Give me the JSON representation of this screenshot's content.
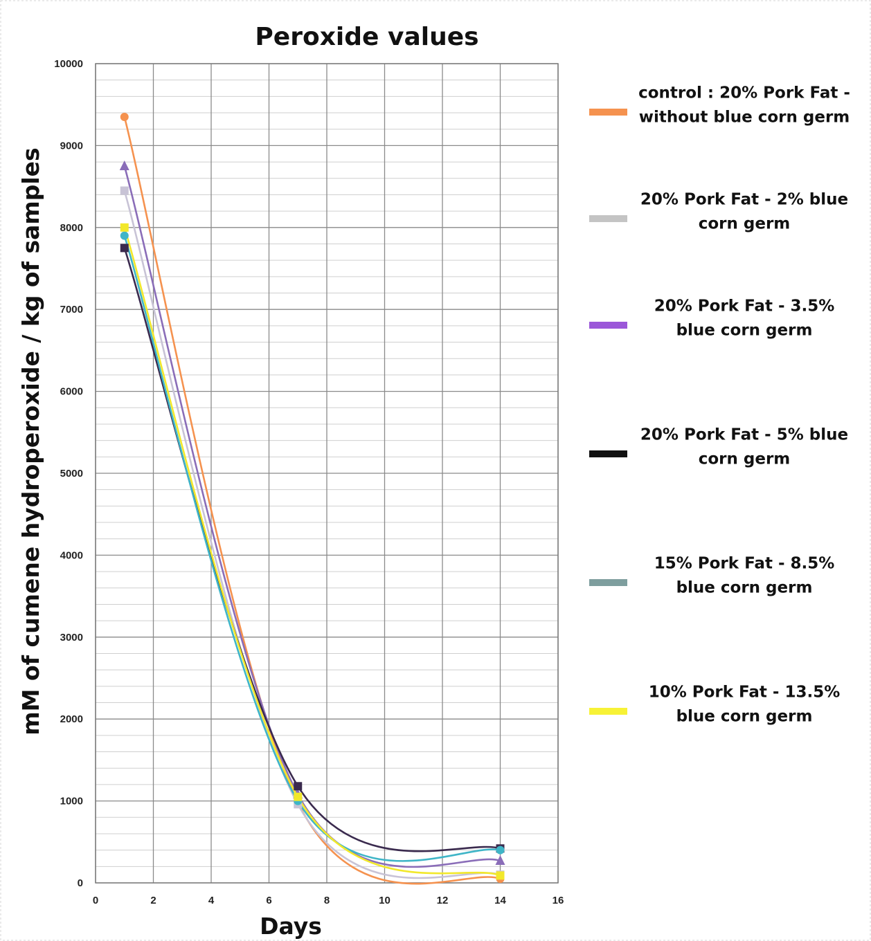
{
  "chart_data": {
    "type": "line",
    "title": "Peroxide values",
    "xlabel": "Days",
    "ylabel": "mM of cumene hydroperoxide / kg of samples",
    "xlim": [
      0,
      16
    ],
    "ylim": [
      0,
      10000
    ],
    "x_ticks": [
      "0",
      "2",
      "4",
      "6",
      "8",
      "10",
      "12",
      "14",
      "16"
    ],
    "y_ticks": [
      "0",
      "1000",
      "2000",
      "3000",
      "4000",
      "5000",
      "6000",
      "7000",
      "8000",
      "9000",
      "10000"
    ],
    "grid": true,
    "legend_position": "right",
    "x": [
      1,
      7,
      14
    ],
    "series": [
      {
        "name_lines": [
          "control : 20% Pork Fat -",
          "without blue corn germ"
        ],
        "color": "#F5924F",
        "marker": "circle",
        "values": [
          9350,
          980,
          50
        ]
      },
      {
        "name_lines": [
          "20% Pork Fat - 2% blue",
          "corn germ"
        ],
        "color": "#C8C3D6",
        "marker": "square",
        "values": [
          8450,
          960,
          100
        ]
      },
      {
        "name_lines": [
          "20% Pork Fat - 3.5%",
          "blue corn germ"
        ],
        "color": "#8A6DB8",
        "marker": "triangle",
        "values": [
          8750,
          1080,
          270
        ]
      },
      {
        "name_lines": [
          "20% Pork Fat - 5% blue",
          "corn germ"
        ],
        "color": "#3A2A4E",
        "marker": "square",
        "values": [
          7750,
          1180,
          420
        ]
      },
      {
        "name_lines": [
          "15% Pork Fat - 8.5%",
          "blue corn germ"
        ],
        "color": "#3FB5C7",
        "marker": "circle",
        "values": [
          7900,
          1000,
          400
        ]
      },
      {
        "name_lines": [
          "10% Pork Fat - 13.5%",
          "blue corn germ"
        ],
        "color": "#F2E82B",
        "marker": "square",
        "values": [
          8000,
          1050,
          90
        ]
      }
    ],
    "legend_swatch_colors": [
      "#F5924F",
      "#C4C4C4",
      "#9B57D9",
      "#111111",
      "#7E9E9E",
      "#F7F236"
    ]
  }
}
